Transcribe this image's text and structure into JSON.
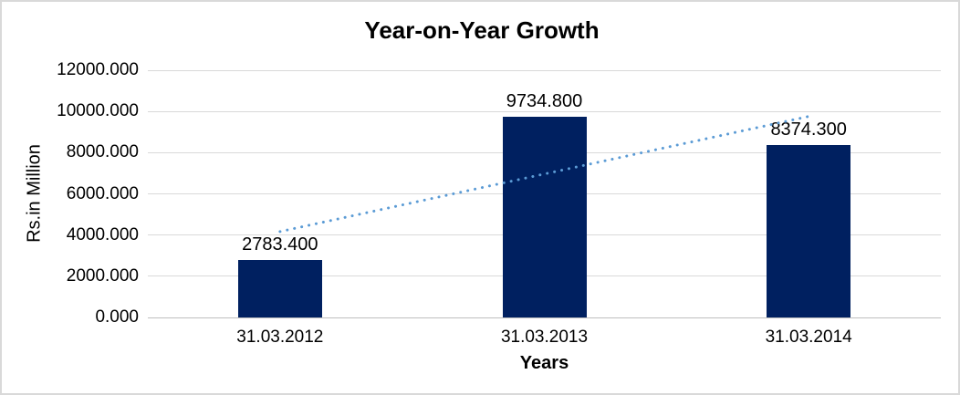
{
  "chart_data": {
    "type": "bar",
    "title": "Year-on-Year Growth",
    "xlabel": "Years",
    "ylabel": "Rs.in Million",
    "categories": [
      "31.03.2012",
      "31.03.2013",
      "31.03.2014"
    ],
    "values": [
      2783.4,
      9734.8,
      8374.3
    ],
    "value_labels": [
      "2783.400",
      "9734.800",
      "8374.300"
    ],
    "ylim": [
      0,
      12000
    ],
    "ytick_step": 2000,
    "ytick_labels": [
      "0.000",
      "2000.000",
      "4000.000",
      "6000.000",
      "8000.000",
      "10000.000",
      "12000.000"
    ],
    "grid": true,
    "legend": "none",
    "colors": {
      "bar": "#002060",
      "trendline": "#5B9BD5",
      "gridline": "#d9d9d9",
      "axis_line": "#bfbfbf",
      "text": "#000000",
      "chart_border": "#d9d9d9",
      "background": "#ffffff"
    },
    "trendline": {
      "type": "linear",
      "style": "dotted",
      "start_value": 4168.7,
      "end_value": 9759.6
    }
  }
}
